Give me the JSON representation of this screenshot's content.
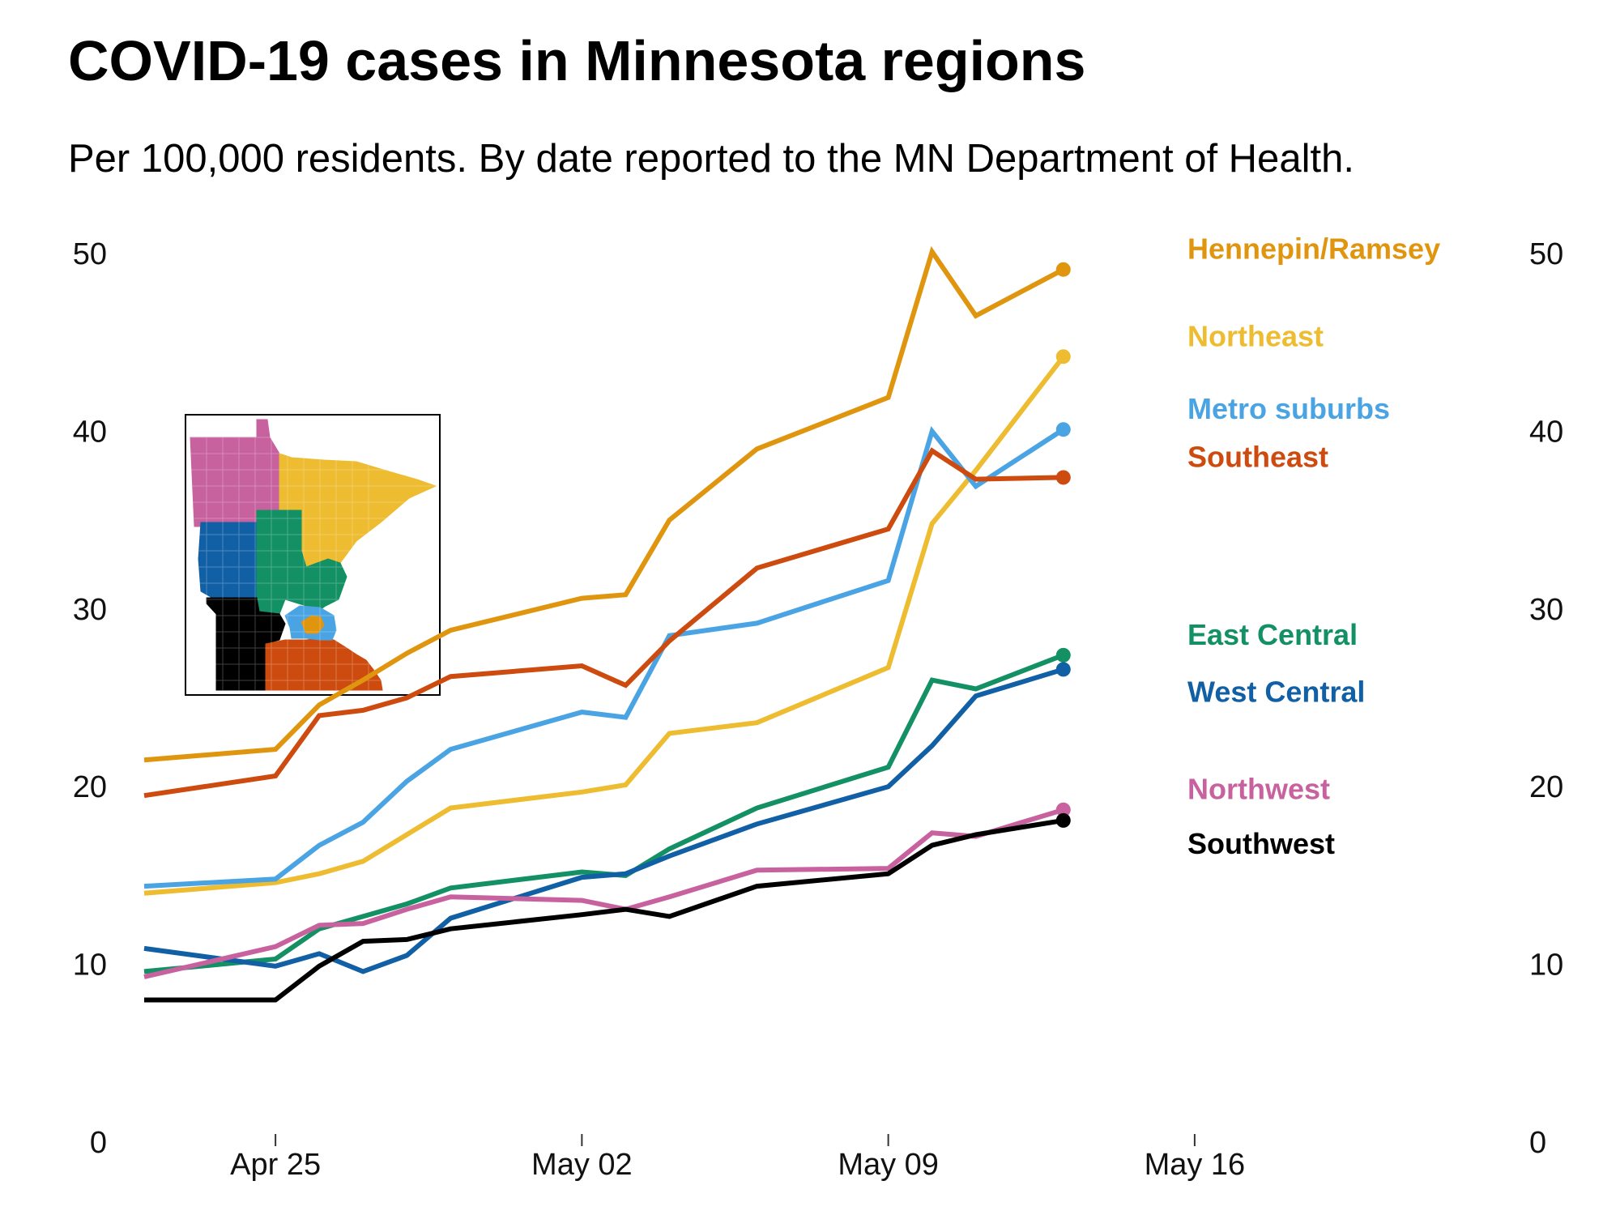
{
  "chart_data": {
    "type": "line",
    "title": "COVID-19 cases in Minnesota regions",
    "subtitle": "Per 100,000 residents. By date reported to the MN Department of Health.",
    "xlabel": "",
    "ylabel": "",
    "x_ticks": [
      {
        "date": "2020-04-25",
        "label": "Apr 25"
      },
      {
        "date": "2020-05-02",
        "label": "May 02"
      },
      {
        "date": "2020-05-09",
        "label": "May 09"
      },
      {
        "date": "2020-05-16",
        "label": "May 16"
      }
    ],
    "xlim": [
      "2020-04-22",
      "2020-05-19"
    ],
    "y_ticks": [
      0,
      10,
      20,
      30,
      40,
      50
    ],
    "ylim": [
      0,
      50
    ],
    "y_axis_both_sides": true,
    "grid": false,
    "legend": "direct labels at line ends",
    "x": [
      "2020-04-22",
      "2020-04-25",
      "2020-04-26",
      "2020-04-27",
      "2020-04-28",
      "2020-04-29",
      "2020-05-02",
      "2020-05-03",
      "2020-05-04",
      "2020-05-06",
      "2020-05-09",
      "2020-05-10",
      "2020-05-11",
      "2020-05-13"
    ],
    "series": [
      {
        "name": "Hennepin/Ramsey",
        "color": "#E0950F",
        "values": [
          21.5,
          22.1,
          24.6,
          26.0,
          27.5,
          28.8,
          30.6,
          30.8,
          35.0,
          39.0,
          41.9,
          50.1,
          46.5,
          49.1
        ]
      },
      {
        "name": "Northeast",
        "color": "#EEBC30",
        "values": [
          14.0,
          14.6,
          15.1,
          15.8,
          17.3,
          18.8,
          19.7,
          20.1,
          23.0,
          23.6,
          26.7,
          34.8,
          37.8,
          44.2
        ]
      },
      {
        "name": "Metro suburbs",
        "color": "#4AA4E3",
        "values": [
          14.4,
          14.8,
          16.7,
          18.0,
          20.3,
          22.1,
          24.2,
          23.9,
          28.5,
          29.2,
          31.6,
          40.0,
          36.9,
          40.1
        ]
      },
      {
        "name": "Southeast",
        "color": "#CD4B0F",
        "values": [
          19.5,
          20.6,
          24.0,
          24.3,
          25.0,
          26.2,
          26.8,
          25.7,
          28.2,
          32.3,
          34.5,
          38.9,
          37.3,
          37.4
        ]
      },
      {
        "name": "East Central",
        "color": "#139064",
        "values": [
          9.6,
          10.3,
          12.0,
          12.7,
          13.4,
          14.3,
          15.2,
          15.0,
          16.5,
          18.8,
          21.1,
          26.0,
          25.5,
          27.4
        ]
      },
      {
        "name": "West Central",
        "color": "#115FA4",
        "values": [
          10.9,
          9.9,
          10.6,
          9.6,
          10.5,
          12.6,
          14.9,
          15.1,
          16.1,
          17.9,
          20.0,
          22.3,
          25.1,
          26.6
        ]
      },
      {
        "name": "Northwest",
        "color": "#C8629F",
        "values": [
          9.3,
          11.0,
          12.2,
          12.3,
          13.1,
          13.8,
          13.6,
          13.1,
          13.8,
          15.3,
          15.4,
          17.4,
          17.2,
          18.7
        ]
      },
      {
        "name": "Southwest",
        "color": "#000000",
        "values": [
          8.0,
          8.0,
          9.9,
          11.3,
          11.4,
          12.0,
          12.8,
          13.1,
          12.7,
          14.4,
          15.1,
          16.7,
          17.3,
          18.1
        ]
      }
    ]
  },
  "inset_map": {
    "region_colors": {
      "Northwest": "#C8629F",
      "Northeast": "#EEBC30",
      "West Central": "#115FA4",
      "East Central": "#139064",
      "Southwest": "#000000",
      "Southeast": "#CD4B0F",
      "Metro suburbs": "#4AA4E3",
      "Hennepin/Ramsey": "#E0950F"
    }
  }
}
